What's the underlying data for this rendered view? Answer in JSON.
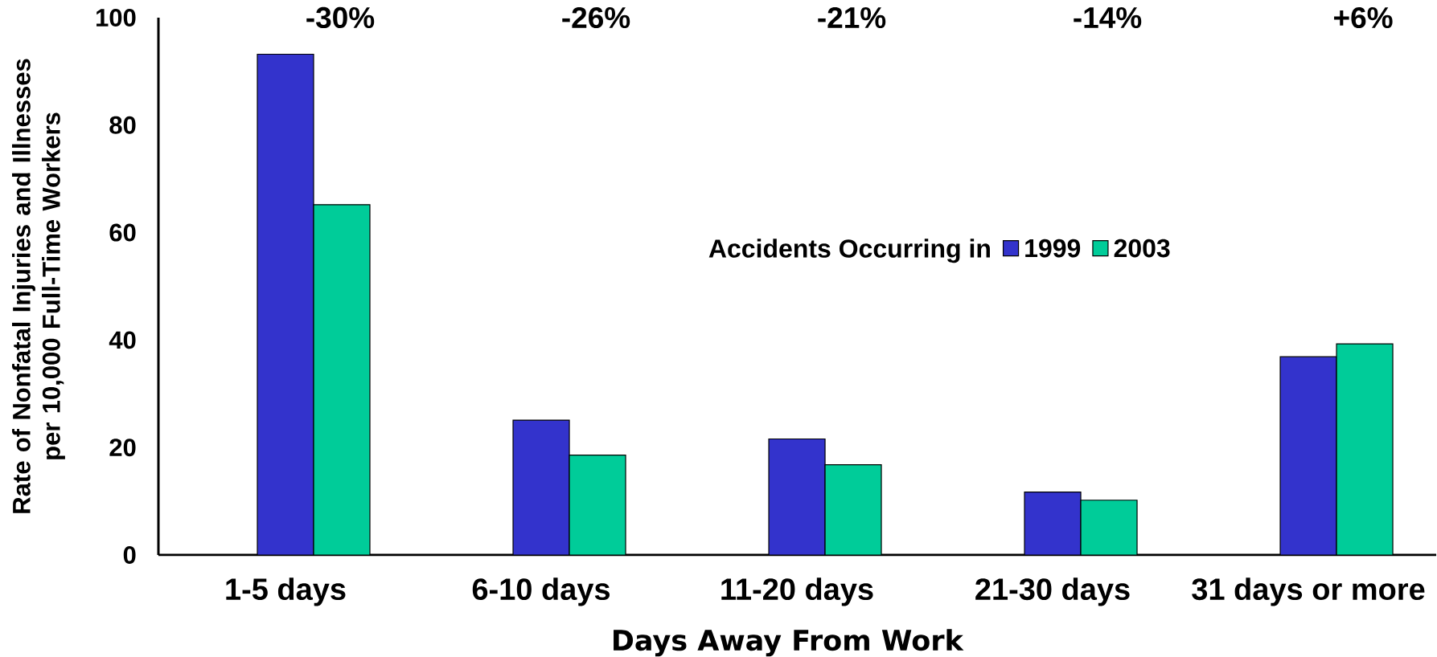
{
  "chart_data": {
    "type": "bar",
    "xlabel": "Days Away From Work",
    "ylabel": "Rate of Nonfatal Injuries and Illnesses per 10,000 Full-Time Workers",
    "legend_title": "Accidents Occurring in",
    "categories": [
      "1-5 days",
      "6-10 days",
      "11-20 days",
      "21-30 days",
      "31 days or more"
    ],
    "series": [
      {
        "name": "1999",
        "color": "#3333cc",
        "values": [
          93.2,
          25.1,
          21.6,
          11.7,
          36.9
        ]
      },
      {
        "name": "2003",
        "color": "#00cc99",
        "values": [
          65.2,
          18.6,
          16.8,
          10.2,
          39.3
        ]
      }
    ],
    "ylim": [
      0,
      100
    ],
    "yticks": [
      0,
      20,
      40,
      60,
      80,
      100
    ],
    "legend": "center",
    "annotations": [
      "-30%",
      "-26%",
      "-21%",
      "-14%",
      "+6%"
    ]
  }
}
